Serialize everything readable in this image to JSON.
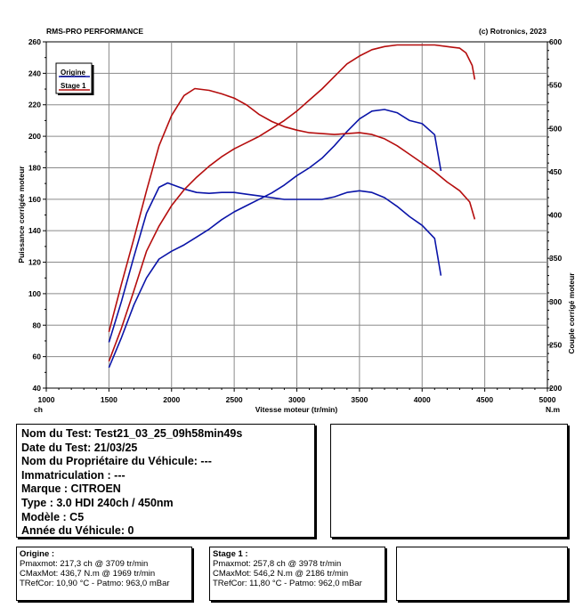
{
  "chart_data": {
    "type": "line",
    "header_left": "RMS-PRO PERFORMANCE",
    "header_right": "(c) Rotronics, 2023",
    "xlabel": "Vitesse moteur (tr/min)",
    "ylabel_left": "Puissance corrigée moteur",
    "ylabel_right": "Couple corrigé moteur",
    "x_unit": "ch",
    "x_unit_right": "N.m",
    "xlim": [
      1000,
      5000
    ],
    "ylim_left": [
      40,
      260
    ],
    "ylim_right": [
      200,
      600
    ],
    "x_ticks": [
      "1000",
      "1500",
      "2000",
      "2500",
      "3000",
      "3500",
      "4000",
      "4500",
      "5000"
    ],
    "y_ticks_left": [
      "40",
      "60",
      "80",
      "100",
      "120",
      "140",
      "160",
      "180",
      "200",
      "220",
      "240",
      "260"
    ],
    "y_ticks_right": [
      "200",
      "250",
      "300",
      "350",
      "400",
      "450",
      "500",
      "550",
      "600"
    ],
    "grid": true,
    "legend_position": "top-left",
    "legend": [
      "Origine",
      "Stage 1"
    ],
    "series": [
      {
        "name": "Origine",
        "color": "#0a14a8",
        "power": {
          "x": [
            1500,
            1600,
            1700,
            1800,
            1900,
            2000,
            2100,
            2200,
            2300,
            2400,
            2500,
            2600,
            2700,
            2800,
            2900,
            3000,
            3100,
            3200,
            3300,
            3400,
            3500,
            3600,
            3700,
            3800,
            3900,
            4000,
            4100,
            4150
          ],
          "y": [
            53,
            72,
            93,
            110,
            122,
            127,
            131,
            136,
            141,
            147,
            152,
            156,
            160,
            164,
            169,
            175,
            180,
            186,
            194,
            203,
            211,
            216,
            217,
            215,
            210,
            208,
            201,
            178
          ]
        },
        "torque": {
          "x": [
            1500,
            1600,
            1700,
            1800,
            1900,
            1969,
            2100,
            2200,
            2300,
            2400,
            2500,
            2600,
            2700,
            2800,
            2900,
            3000,
            3100,
            3200,
            3300,
            3400,
            3500,
            3600,
            3700,
            3800,
            3900,
            4000,
            4100,
            4150
          ],
          "y": [
            253,
            300,
            352,
            402,
            432,
            437,
            430,
            426,
            425,
            426,
            426,
            424,
            422,
            420,
            418,
            418,
            418,
            418,
            421,
            426,
            428,
            426,
            420,
            410,
            398,
            388,
            373,
            330
          ]
        }
      },
      {
        "name": "Stage 1",
        "color": "#b50d0d",
        "power": {
          "x": [
            1500,
            1600,
            1700,
            1800,
            1900,
            2000,
            2100,
            2200,
            2300,
            2400,
            2500,
            2600,
            2700,
            2800,
            2900,
            3000,
            3100,
            3200,
            3300,
            3400,
            3500,
            3600,
            3700,
            3800,
            3900,
            3978,
            4100,
            4200,
            4300,
            4350,
            4400,
            4420
          ],
          "y": [
            57,
            78,
            102,
            127,
            143,
            156,
            166,
            174,
            181,
            187,
            192,
            196,
            200,
            205,
            210,
            216,
            223,
            230,
            238,
            246,
            251,
            255,
            257,
            258,
            258,
            258,
            258,
            257,
            256,
            253,
            245,
            236
          ]
        },
        "torque": {
          "x": [
            1500,
            1600,
            1700,
            1800,
            1900,
            2000,
            2100,
            2186,
            2300,
            2400,
            2500,
            2600,
            2700,
            2800,
            2900,
            3000,
            3100,
            3200,
            3300,
            3400,
            3500,
            3600,
            3700,
            3800,
            3900,
            4000,
            4100,
            4200,
            4300,
            4380,
            4420
          ],
          "y": [
            265,
            320,
            373,
            428,
            480,
            515,
            538,
            546,
            544,
            540,
            535,
            527,
            516,
            508,
            502,
            498,
            495,
            494,
            493,
            494,
            495,
            493,
            488,
            480,
            470,
            460,
            450,
            438,
            428,
            415,
            395
          ]
        }
      }
    ]
  },
  "test_info": {
    "lines": [
      "Nom du Test: Test21_03_25_09h58min49s",
      "Date du Test: 21/03/25",
      "Nom du Propriétaire du Véhicule: ---",
      "Immatriculation  : ---",
      "Marque  : CITROEN",
      "Type  : 3.0 HDI 240ch / 450nm",
      "Modèle  : C5",
      "Année du Véhicule: 0"
    ]
  },
  "results": [
    {
      "title": "Origine :",
      "lines": [
        "Pmaxmot: 217,3 ch @ 3709 tr/min",
        "CMaxMot: 436,7 N.m @ 1969 tr/min",
        "TRefCor: 10,90 °C - Patmo: 963,0 mBar"
      ]
    },
    {
      "title": "Stage 1 :",
      "lines": [
        "Pmaxmot: 257,8 ch @ 3978 tr/min",
        "CMaxMot: 546,2 N.m @ 2186 tr/min",
        "TRefCor: 11,80 °C - Patmo: 962,0 mBar"
      ]
    }
  ]
}
